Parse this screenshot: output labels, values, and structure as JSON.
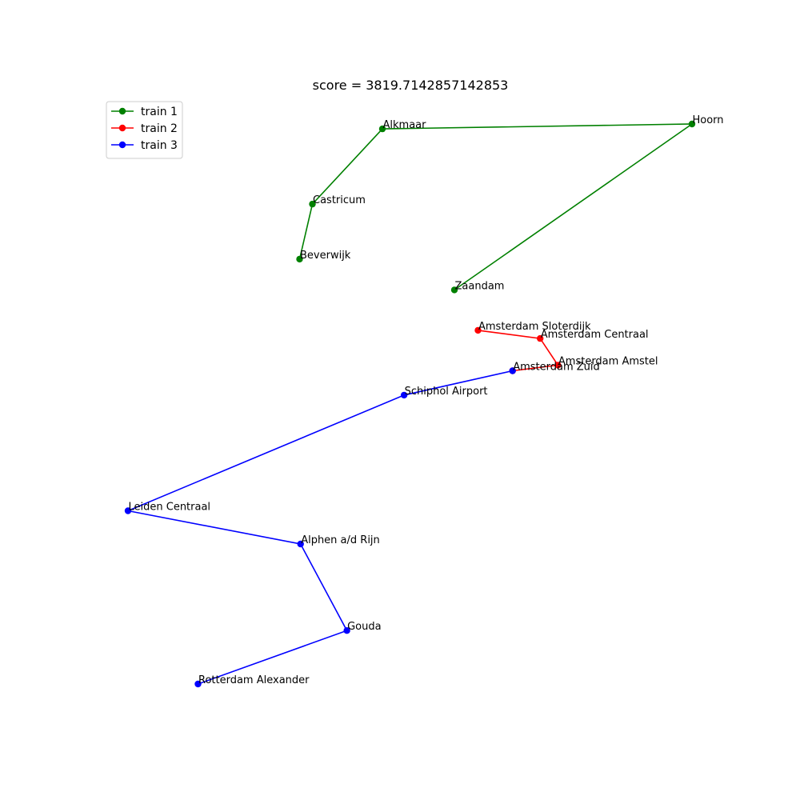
{
  "chart_data": {
    "type": "line",
    "title": "score = 3819.7142857142853",
    "legend_placement": "top-left",
    "axes_visible": false,
    "grid": false,
    "series": [
      {
        "name": "train 1",
        "color": "#008000",
        "points": [
          {
            "station": "Beverwijk",
            "x": 4.656,
            "y": 52.477
          },
          {
            "station": "Castricum",
            "x": 4.669,
            "y": 52.545
          },
          {
            "station": "Alkmaar",
            "x": 4.74,
            "y": 52.638
          },
          {
            "station": "Hoorn",
            "x": 5.054,
            "y": 52.644
          },
          {
            "station": "Zaandam",
            "x": 4.813,
            "y": 52.439
          }
        ]
      },
      {
        "name": "train 2",
        "color": "#ff0000",
        "points": [
          {
            "station": "Amsterdam Sloterdijk",
            "x": 4.837,
            "y": 52.389
          },
          {
            "station": "Amsterdam Centraal",
            "x": 4.9,
            "y": 52.379
          },
          {
            "station": "Amsterdam Amstel",
            "x": 4.918,
            "y": 52.346
          },
          {
            "station": "Amsterdam Zuid",
            "x": 4.872,
            "y": 52.339
          }
        ]
      },
      {
        "name": "train 3",
        "color": "#0000ff",
        "points": [
          {
            "station": "Amsterdam Zuid",
            "x": 4.872,
            "y": 52.339
          },
          {
            "station": "Schiphol Airport",
            "x": 4.762,
            "y": 52.309
          },
          {
            "station": "Leiden Centraal",
            "x": 4.482,
            "y": 52.166
          },
          {
            "station": "Alphen a/d Rijn",
            "x": 4.657,
            "y": 52.125
          },
          {
            "station": "Gouda",
            "x": 4.704,
            "y": 52.018
          },
          {
            "station": "Rotterdam Alexander",
            "x": 4.553,
            "y": 51.952
          }
        ]
      }
    ],
    "labels": [
      {
        "text": "Hoorn",
        "x": 5.054,
        "y": 52.644
      },
      {
        "text": "Amsterdam Amstel",
        "x": 4.918,
        "y": 52.346
      },
      {
        "text": "Amsterdam Centraal",
        "x": 4.9,
        "y": 52.379
      },
      {
        "text": "Amsterdam Zuid",
        "x": 4.872,
        "y": 52.339
      },
      {
        "text": "Amsterdam Sloterdijk",
        "x": 4.837,
        "y": 52.389
      },
      {
        "text": "Zaandam",
        "x": 4.813,
        "y": 52.439
      },
      {
        "text": "Schiphol Airport",
        "x": 4.762,
        "y": 52.309
      },
      {
        "text": "Alkmaar",
        "x": 4.74,
        "y": 52.638
      },
      {
        "text": "Gouda",
        "x": 4.704,
        "y": 52.018
      },
      {
        "text": "Alphen a/d Rijn",
        "x": 4.657,
        "y": 52.125
      },
      {
        "text": "Castricum",
        "x": 4.669,
        "y": 52.545
      },
      {
        "text": "Beverwijk",
        "x": 4.656,
        "y": 52.477
      },
      {
        "text": "Rotterdam Alexander",
        "x": 4.553,
        "y": 51.952
      },
      {
        "text": "Leiden Centraal",
        "x": 4.482,
        "y": 52.166
      }
    ]
  }
}
